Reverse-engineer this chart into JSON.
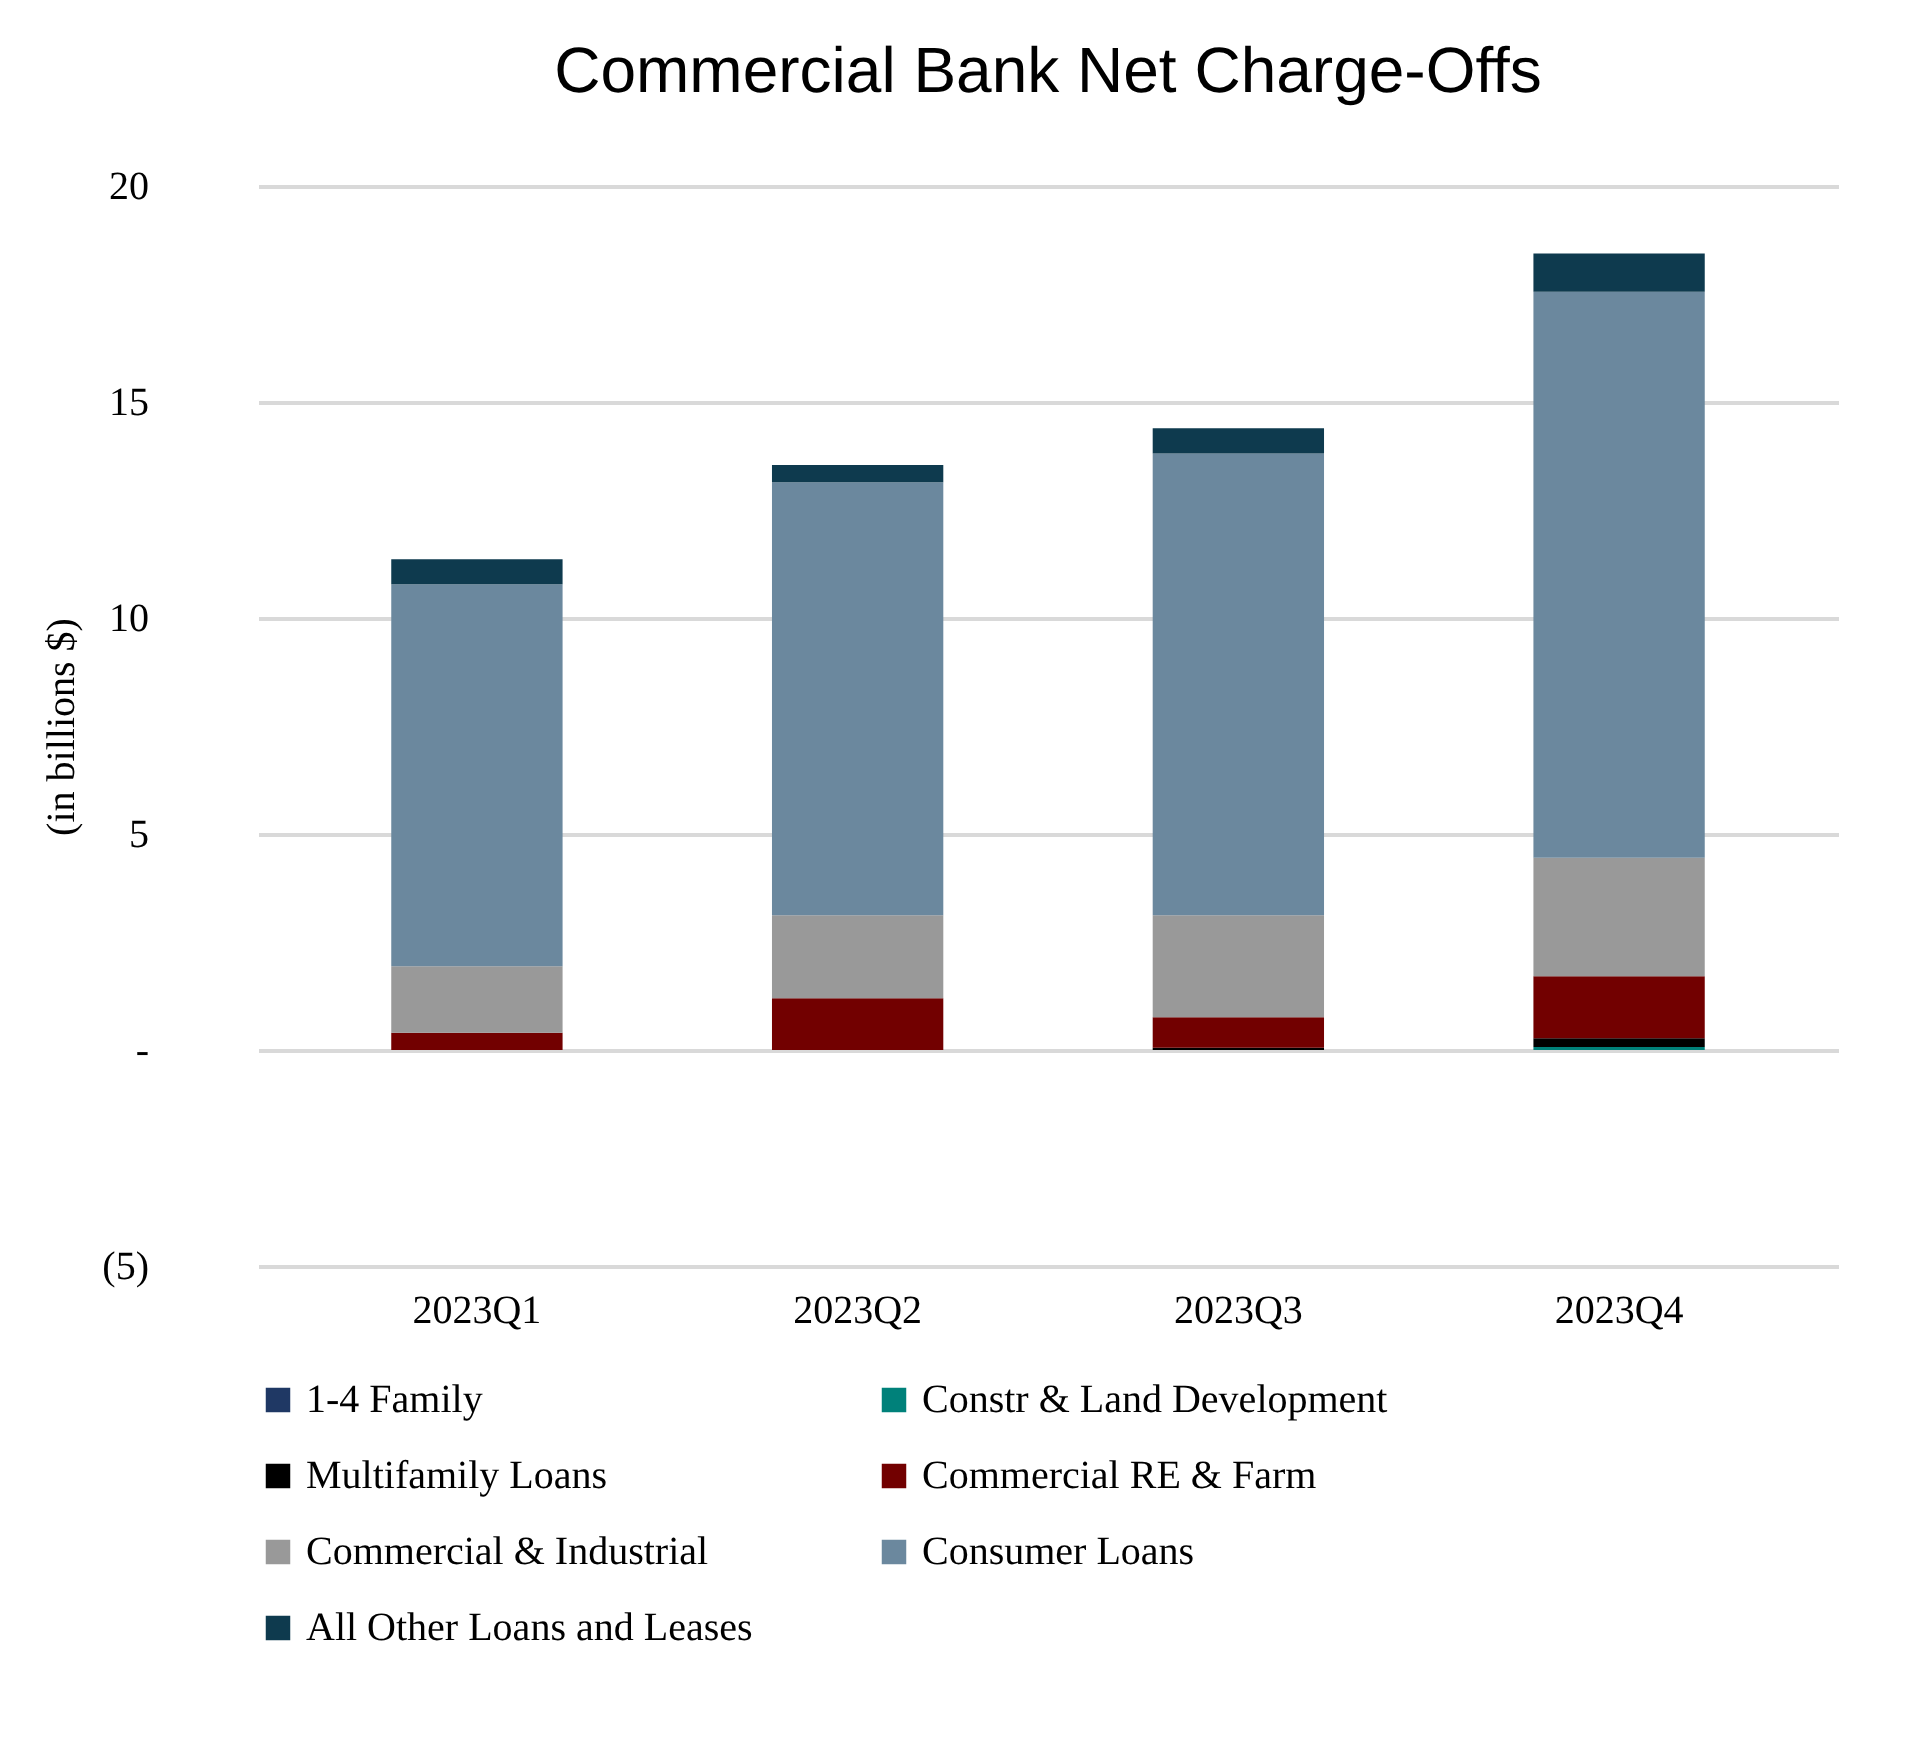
{
  "chart_data": {
    "type": "bar",
    "title": "Commercial Bank Net Charge-Offs",
    "ylabel": "(in billions $)",
    "categories": [
      "2023Q1",
      "2023Q2",
      "2023Q3",
      "2023Q4"
    ],
    "stacked": true,
    "series": [
      {
        "name": "1-4 Family",
        "color": "#1f3864",
        "values": [
          0,
          0,
          0,
          0
        ]
      },
      {
        "name": "Constr & Land Development",
        "color": "#00817a",
        "values": [
          0,
          0,
          0,
          0.07
        ]
      },
      {
        "name": "Multifamily Loans",
        "color": "#000000",
        "values": [
          0,
          0,
          0.05,
          0.2
        ]
      },
      {
        "name": "Commercial RE & Farm",
        "color": "#720000",
        "values": [
          0.4,
          1.2,
          0.71,
          1.44
        ]
      },
      {
        "name": "Commercial & Industrial",
        "color": "#999999",
        "values": [
          1.54,
          1.92,
          2.36,
          2.74
        ]
      },
      {
        "name": "Consumer Loans",
        "color": "#6b889e",
        "values": [
          8.84,
          10.02,
          10.69,
          13.1
        ]
      },
      {
        "name": "All Other Loans and Leases",
        "color": "#0e3a4e",
        "values": [
          0.58,
          0.4,
          0.58,
          0.89
        ]
      }
    ],
    "ylim": [
      -5,
      20
    ],
    "yticks": [
      {
        "value": -5,
        "label": "(5)"
      },
      {
        "value": 0,
        "label": "-"
      },
      5,
      10,
      15,
      20
    ],
    "grid": "y",
    "legend": "bottom"
  }
}
